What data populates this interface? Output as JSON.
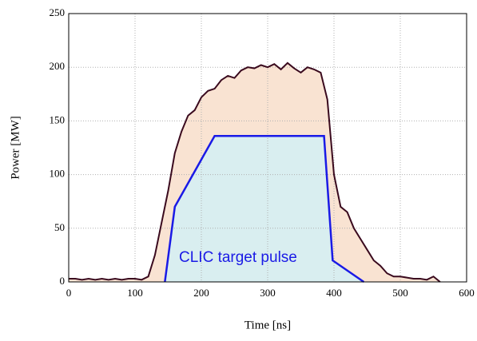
{
  "chart_data": {
    "type": "area",
    "xlabel": "Time [ns]",
    "ylabel": "Power [MW]",
    "annotation": "CLIC target pulse",
    "xlim": [
      0,
      600
    ],
    "xticks": [
      0,
      100,
      200,
      300,
      400,
      500,
      600
    ],
    "ylim": [
      0,
      250
    ],
    "yticks": [
      0,
      50,
      100,
      150,
      200,
      250
    ],
    "grid": true,
    "series": [
      {
        "color": "#3a0a1e",
        "fill": "#f9e3d2",
        "x": [
          0,
          10,
          20,
          30,
          40,
          50,
          60,
          70,
          80,
          90,
          100,
          110,
          120,
          130,
          140,
          150,
          160,
          170,
          180,
          190,
          200,
          210,
          220,
          230,
          240,
          250,
          260,
          270,
          280,
          290,
          300,
          310,
          320,
          330,
          340,
          350,
          360,
          370,
          380,
          390,
          400,
          410,
          420,
          430,
          440,
          450,
          460,
          470,
          480,
          490,
          500,
          510,
          520,
          530,
          540,
          550,
          560
        ],
        "values": [
          3,
          3,
          2,
          3,
          2,
          3,
          2,
          3,
          2,
          3,
          3,
          2,
          5,
          25,
          55,
          85,
          120,
          140,
          155,
          160,
          172,
          178,
          180,
          188,
          192,
          190,
          197,
          200,
          199,
          202,
          200,
          203,
          198,
          204,
          199,
          195,
          200,
          198,
          195,
          170,
          100,
          70,
          65,
          50,
          40,
          30,
          20,
          15,
          8,
          5,
          5,
          4,
          3,
          3,
          2,
          5,
          0
        ]
      },
      {
        "color": "#1a1ae6",
        "fill": "#d9eef0",
        "x": [
          145,
          160,
          220,
          385,
          398,
          445
        ],
        "values": [
          0,
          70,
          136,
          136,
          20,
          0
        ]
      }
    ]
  }
}
